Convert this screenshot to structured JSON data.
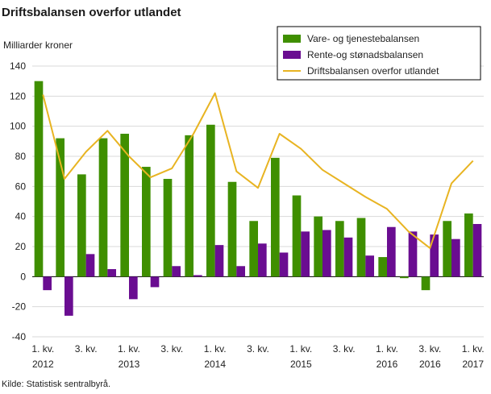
{
  "title": "Driftsbalansen overfor utlandet",
  "source": "Kilde: Statistisk sentralbyrå.",
  "chart_data": {
    "type": "bar",
    "ylabel": "Milliarder  kroner",
    "ylim": [
      -40,
      140
    ],
    "yticks": [
      -40,
      -20,
      0,
      20,
      40,
      60,
      80,
      100,
      120,
      140
    ],
    "grid": true,
    "legend_position": "top-right",
    "categories": [
      "2012K1",
      "2012K2",
      "2012K3",
      "2012K4",
      "2013K1",
      "2013K2",
      "2013K3",
      "2013K4",
      "2014K1",
      "2014K2",
      "2014K3",
      "2014K4",
      "2015K1",
      "2015K2",
      "2015K3",
      "2015K4",
      "2016K1",
      "2016K2",
      "2016K3",
      "2016K4",
      "2017K1"
    ],
    "x_tick_labels": [
      {
        "index": 0,
        "line1": "1. kv.",
        "line2": "2012"
      },
      {
        "index": 2,
        "line1": "3. kv.",
        "line2": ""
      },
      {
        "index": 4,
        "line1": "1. kv.",
        "line2": "2013"
      },
      {
        "index": 6,
        "line1": "3. kv.",
        "line2": ""
      },
      {
        "index": 8,
        "line1": "1. kv.",
        "line2": "2014"
      },
      {
        "index": 10,
        "line1": "3. kv.",
        "line2": ""
      },
      {
        "index": 12,
        "line1": "1. kv.",
        "line2": "2015"
      },
      {
        "index": 14,
        "line1": "3. kv.",
        "line2": ""
      },
      {
        "index": 16,
        "line1": "1. kv.",
        "line2": "2016"
      },
      {
        "index": 18,
        "line1": "3. kv.",
        "line2": "2016"
      },
      {
        "index": 20,
        "line1": "1. kv.",
        "line2": "2017"
      }
    ],
    "series": [
      {
        "name": "Vare- og tjenestebalansen",
        "type": "bar",
        "color": "#3f8f00",
        "values": [
          130,
          92,
          68,
          92,
          95,
          73,
          65,
          94,
          101,
          63,
          37,
          79,
          54,
          40,
          37,
          39,
          13,
          -1,
          -9,
          37,
          42
        ]
      },
      {
        "name": "Rente-og stønadsbalansen",
        "type": "bar",
        "color": "#6a0d91",
        "values": [
          -9,
          -26,
          15,
          5,
          -15,
          -7,
          7,
          1,
          21,
          7,
          22,
          16,
          30,
          31,
          26,
          14,
          33,
          30,
          28,
          25,
          35
        ]
      },
      {
        "name": "Driftsbalansen overfor utlandet",
        "type": "line",
        "color": "#e8b422",
        "values": [
          121,
          65,
          83,
          97,
          80,
          66,
          72,
          95,
          122,
          70,
          59,
          95,
          85,
          71,
          62,
          53,
          45,
          30,
          19,
          62,
          77
        ]
      }
    ]
  }
}
